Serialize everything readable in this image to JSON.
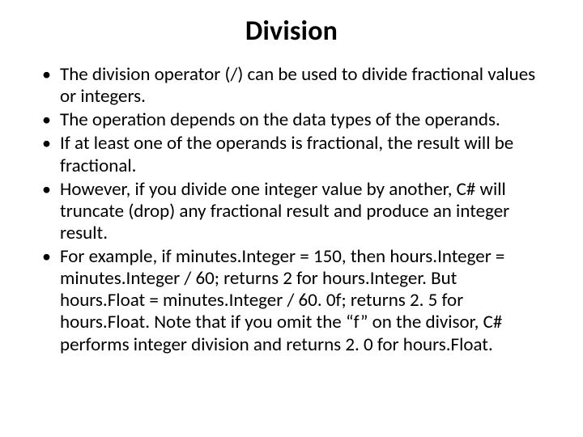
{
  "title": "Division",
  "bullets": [
    "The division operator (/) can be used to divide fractional values or integers.",
    "The operation depends on the data types of the operands.",
    "If at least one of the operands is fractional, the result will be fractional.",
    "However, if you divide one integer value by another, C# will truncate (drop) any fractional result and produce an integer result.",
    "For example, if minutes.Integer = 150, then hours.Integer = minutes.Integer / 60; returns 2 for hours.Integer. But hours.Float = minutes.Integer / 60. 0f; returns 2. 5 for hours.Float. Note that if you omit the “f” on the divisor, C# performs integer division and returns 2. 0 for hours.Float."
  ]
}
